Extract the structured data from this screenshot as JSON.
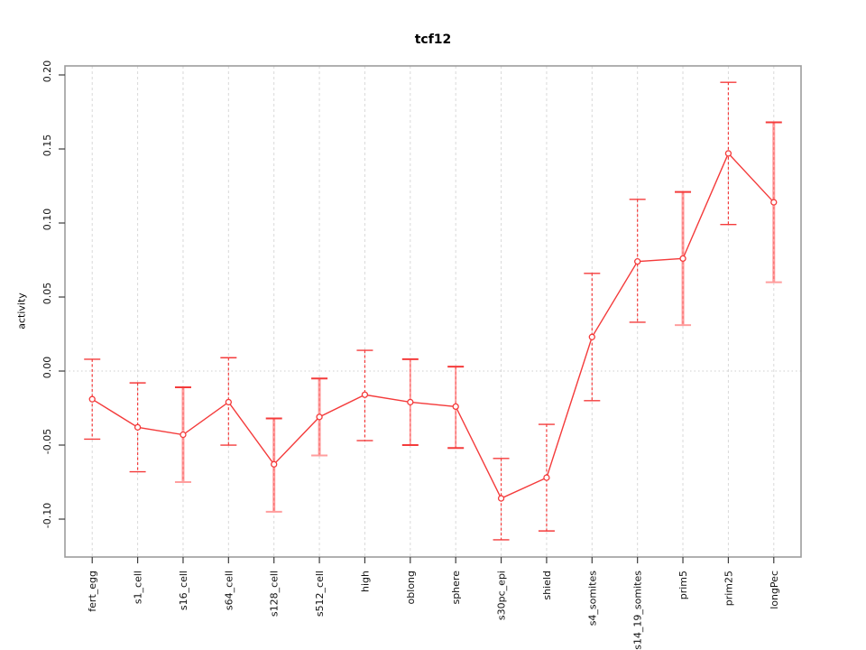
{
  "chart_data": {
    "type": "line",
    "title": "tcf12",
    "xlabel": "",
    "ylabel": "activity",
    "legend_position": "none",
    "categories": [
      "fert_egg",
      "s1_cell",
      "s16_cell",
      "s64_cell",
      "s128_cell",
      "s512_cell",
      "high",
      "oblong",
      "sphere",
      "s30pc_epi",
      "shield",
      "s4_somites",
      "s14_19_somites",
      "prim5",
      "prim25",
      "longPec"
    ],
    "series": [
      {
        "name": "activity",
        "values": [
          -0.019,
          -0.038,
          -0.043,
          -0.021,
          -0.063,
          -0.031,
          -0.016,
          -0.021,
          -0.024,
          -0.086,
          -0.072,
          0.023,
          0.074,
          0.076,
          0.147,
          0.114
        ],
        "error_upper": [
          0.008,
          -0.008,
          -0.011,
          0.009,
          -0.032,
          -0.005,
          0.014,
          0.008,
          0.003,
          -0.059,
          -0.036,
          0.066,
          0.116,
          0.121,
          0.195,
          0.168
        ],
        "error_lower": [
          -0.046,
          -0.068,
          -0.075,
          -0.05,
          -0.095,
          -0.057,
          -0.047,
          -0.05,
          -0.052,
          -0.114,
          -0.108,
          -0.02,
          0.033,
          0.031,
          0.099,
          0.06
        ],
        "error_bar_styles": [
          "dashed",
          "dashed",
          "solid-thick",
          "dashed",
          "solid-thick",
          "solid-thick",
          "dashed",
          "solid",
          "solid",
          "dashed",
          "dashed",
          "dashed",
          "dashed",
          "solid-thick",
          "dashed",
          "solid-thick"
        ]
      }
    ],
    "y_ticks": [
      "0.20",
      "0.15",
      "0.10",
      "0.05",
      "0.00",
      "-0.05",
      "-0.10"
    ],
    "y_tick_values": [
      0.2,
      0.15,
      0.1,
      0.05,
      0.0,
      -0.05,
      -0.1
    ],
    "ylim": [
      -0.1256,
      0.2061
    ],
    "grid": {
      "vertical_dashed": true,
      "horizontal_zero_dotted": true
    },
    "zero_line_value": 0,
    "marker": "open-circle",
    "colors": {
      "series_red": "#f43b3b",
      "error_bar_light": "#ff9e9e",
      "grid_gray": "#d9d9d9",
      "zero_dotted_gray": "#cfcfcf",
      "plot_border_gray": "#9c9c9c",
      "tick_mark": "#3c3c3c",
      "tick_text": "#111111",
      "background": "#ffffff"
    }
  }
}
